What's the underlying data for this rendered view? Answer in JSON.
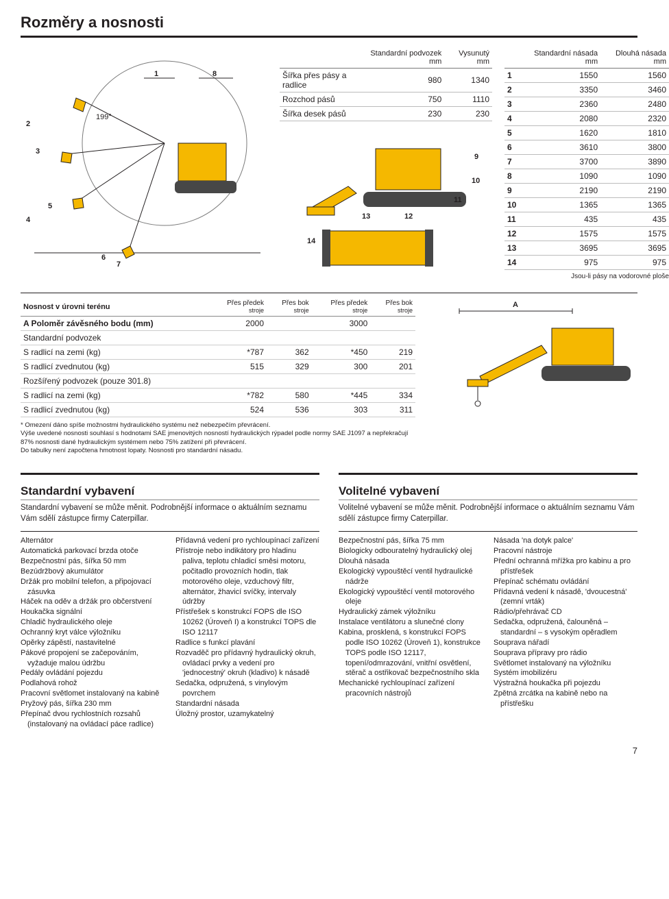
{
  "colors": {
    "text": "#231f20",
    "accent": "#f5b800",
    "rule": "#231f20",
    "hair": "#888888",
    "rowline": "#bbbbbb",
    "bg": "#ffffff"
  },
  "typography": {
    "base_family": "Arial",
    "h1_size_pt": 17,
    "h2_size_pt": 13,
    "body_size_pt": 8.5
  },
  "page": {
    "title": "Rozměry a nosnosti",
    "page_number": "7"
  },
  "figure_main": {
    "angle_label": "199°",
    "dim_labels": [
      "1",
      "2",
      "3",
      "4",
      "5",
      "6",
      "7",
      "8"
    ],
    "dim_labels_right": [
      "9",
      "10",
      "11",
      "12",
      "13",
      "14"
    ]
  },
  "table_dim1": {
    "headers": [
      "",
      "Standardní podvozek mm",
      "Vysunutý mm"
    ],
    "rows": [
      {
        "label": "Šířka přes pásy a radlice",
        "std": "980",
        "ext": "1340"
      },
      {
        "label": "Rozchod pásů",
        "std": "750",
        "ext": "1110"
      },
      {
        "label": "Šířka desek pásů",
        "std": "230",
        "ext": "230"
      }
    ]
  },
  "table_dim2": {
    "headers": [
      "",
      "Standardní násada mm",
      "Dlouhá násada mm"
    ],
    "rows": [
      {
        "n": "1",
        "a": "1550",
        "b": "1560"
      },
      {
        "n": "2",
        "a": "3350",
        "b": "3460"
      },
      {
        "n": "3",
        "a": "2360",
        "b": "2480"
      },
      {
        "n": "4",
        "a": "2080",
        "b": "2320"
      },
      {
        "n": "5",
        "a": "1620",
        "b": "1810"
      },
      {
        "n": "6",
        "a": "3610",
        "b": "3800"
      },
      {
        "n": "7",
        "a": "3700",
        "b": "3890"
      },
      {
        "n": "8",
        "a": "1090",
        "b": "1090"
      },
      {
        "n": "9",
        "a": "2190",
        "b": "2190"
      },
      {
        "n": "10",
        "a": "1365",
        "b": "1365"
      },
      {
        "n": "11",
        "a": "435",
        "b": "435"
      },
      {
        "n": "12",
        "a": "1575",
        "b": "1575"
      },
      {
        "n": "13",
        "a": "3695",
        "b": "3695"
      },
      {
        "n": "14",
        "a": "975",
        "b": "975"
      }
    ],
    "footnote": "Jsou-li pásy na vodorovné ploše"
  },
  "table_capacity": {
    "title": "Nosnost v úrovni terénu",
    "headers": {
      "c1": "Přes předek",
      "c1s": "stroje",
      "c2": "Přes bok",
      "c2s": "stroje",
      "c3": "Přes předek",
      "c3s": "stroje",
      "c4": "Přes bok",
      "c4s": "stroje"
    },
    "row_a_label": "A Poloměr závěsného bodu (mm)",
    "row_a_vals": [
      "2000",
      "",
      "3000",
      ""
    ],
    "sections": [
      {
        "heading": "Standardní podvozek",
        "rows": [
          {
            "label": "S radlicí na zemi (kg)",
            "v": [
              "*787",
              "362",
              "*450",
              "219"
            ]
          },
          {
            "label": "S radlicí zvednutou (kg)",
            "v": [
              "515",
              "329",
              "300",
              "201"
            ]
          }
        ]
      },
      {
        "heading": "Rozšířený podvozek (pouze 301.8)",
        "rows": [
          {
            "label": "S radlicí na zemi (kg)",
            "v": [
              "*782",
              "580",
              "*445",
              "334"
            ]
          },
          {
            "label": "S radlicí zvednutou (kg)",
            "v": [
              "524",
              "536",
              "303",
              "311"
            ]
          }
        ]
      }
    ],
    "notes": [
      "*  Omezení dáno spíše možnostmi hydraulického systému než nebezpečím převrácení.",
      "Výše uvedené nosnosti souhlasí s hodnotami SAE jmenovitých nosností hydraulických rýpadel podle normy SAE J1097 a nepřekračují 87% nosnosti dané hydraulickým systémem nebo 75% zatížení při převrácení.",
      "Do tabulky není započtena hmotnost lopaty. Nosnosti pro standardní násadu."
    ],
    "right_fig_label": "A"
  },
  "equipment": {
    "standard": {
      "title": "Standardní vybavení",
      "intro": "Standardní vybavení se může měnit. Podrobnější informace o aktuálním seznamu Vám sdělí zástupce firmy Caterpillar.",
      "col1": [
        "Alternátor",
        "Automatická parkovací brzda otoče",
        "Bezpečnostní pás, šířka 50 mm",
        "Bezúdržbový akumulátor",
        "Držák pro mobilní telefon, a připojovací zásuvka",
        "Háček na oděv a držák pro občerstvení",
        "Houkačka signální",
        "Chladič hydraulického oleje",
        "Ochranný kryt válce výložníku",
        "Opěrky zápěstí, nastavitelné",
        "Pákové propojení se začepováním, vyžaduje malou údržbu",
        "Pedály ovládání pojezdu",
        "Podlahová rohož",
        "Pracovní světlomet instalovaný na kabině",
        "Pryžový pás, šířka 230 mm",
        "Přepínač dvou rychlostních rozsahů (instalovaný na ovládací páce radlice)"
      ],
      "col2": [
        "Přídavná vedení pro rychloupínací zařízení",
        "Přístroje nebo indikátory pro hladinu paliva, teplotu chladicí směsi motoru, počitadlo provozních hodin, tlak motorového oleje, vzduchový filtr, alternátor, žhavicí svíčky, intervaly údržby",
        "Přístřešek s konstrukcí FOPS dle ISO 10262 (Úroveň I) a konstrukcí TOPS dle ISO 12117",
        "Radlice s funkcí plavání",
        "Rozvaděč pro přídavný hydraulický okruh, ovládací prvky a vedení pro 'jednocestný' okruh (kladivo) k násadě",
        "Sedačka, odpružená, s vinylovým povrchem",
        "Standardní násada",
        "Úložný prostor, uzamykatelný"
      ]
    },
    "optional": {
      "title": "Volitelné vybavení",
      "intro": "Volitelné vybavení se může měnit. Podrobnější informace o aktuálním seznamu Vám sdělí zástupce firmy Caterpillar.",
      "col1": [
        "Bezpečnostní pás, šířka 75 mm",
        "Biologicky odbouratelný hydraulický olej",
        "Dlouhá násada",
        "Ekologický vypouštěcí ventil hydraulické nádrže",
        "Ekologický vypouštěcí ventil motorového oleje",
        "Hydraulický zámek výložníku",
        "Instalace ventilátoru a slunečné clony",
        "Kabina, prosklená, s konstrukcí FOPS podle ISO 10262 (Úroveň 1), konstrukce TOPS podle ISO 12117, topení/odmrazování, vnitřní osvětlení, stěrač a ostřikovač bezpečnostního skla",
        "Mechanické rychloupínací zařízení pracovních nástrojů"
      ],
      "col2": [
        "Násada 'na dotyk palce'",
        "Pracovní nástroje",
        "Přední ochranná mřížka pro kabinu a pro přístřešek",
        "Přepínač schématu ovládání",
        "Přídavná vedení k násadě, 'dvoucestná' (zemní vrták)",
        "Rádio/přehrávač CD",
        "Sedačka, odpružená, čalouněná – standardní – s vysokým opěradlem",
        "Souprava nářadí",
        "Souprava přípravy pro rádio",
        "Světlomet instalovaný na výložníku",
        "Systém imobilizéru",
        "Výstražná houkačka při pojezdu",
        "Zpětná zrcátka na kabině nebo na přístřešku"
      ]
    }
  }
}
